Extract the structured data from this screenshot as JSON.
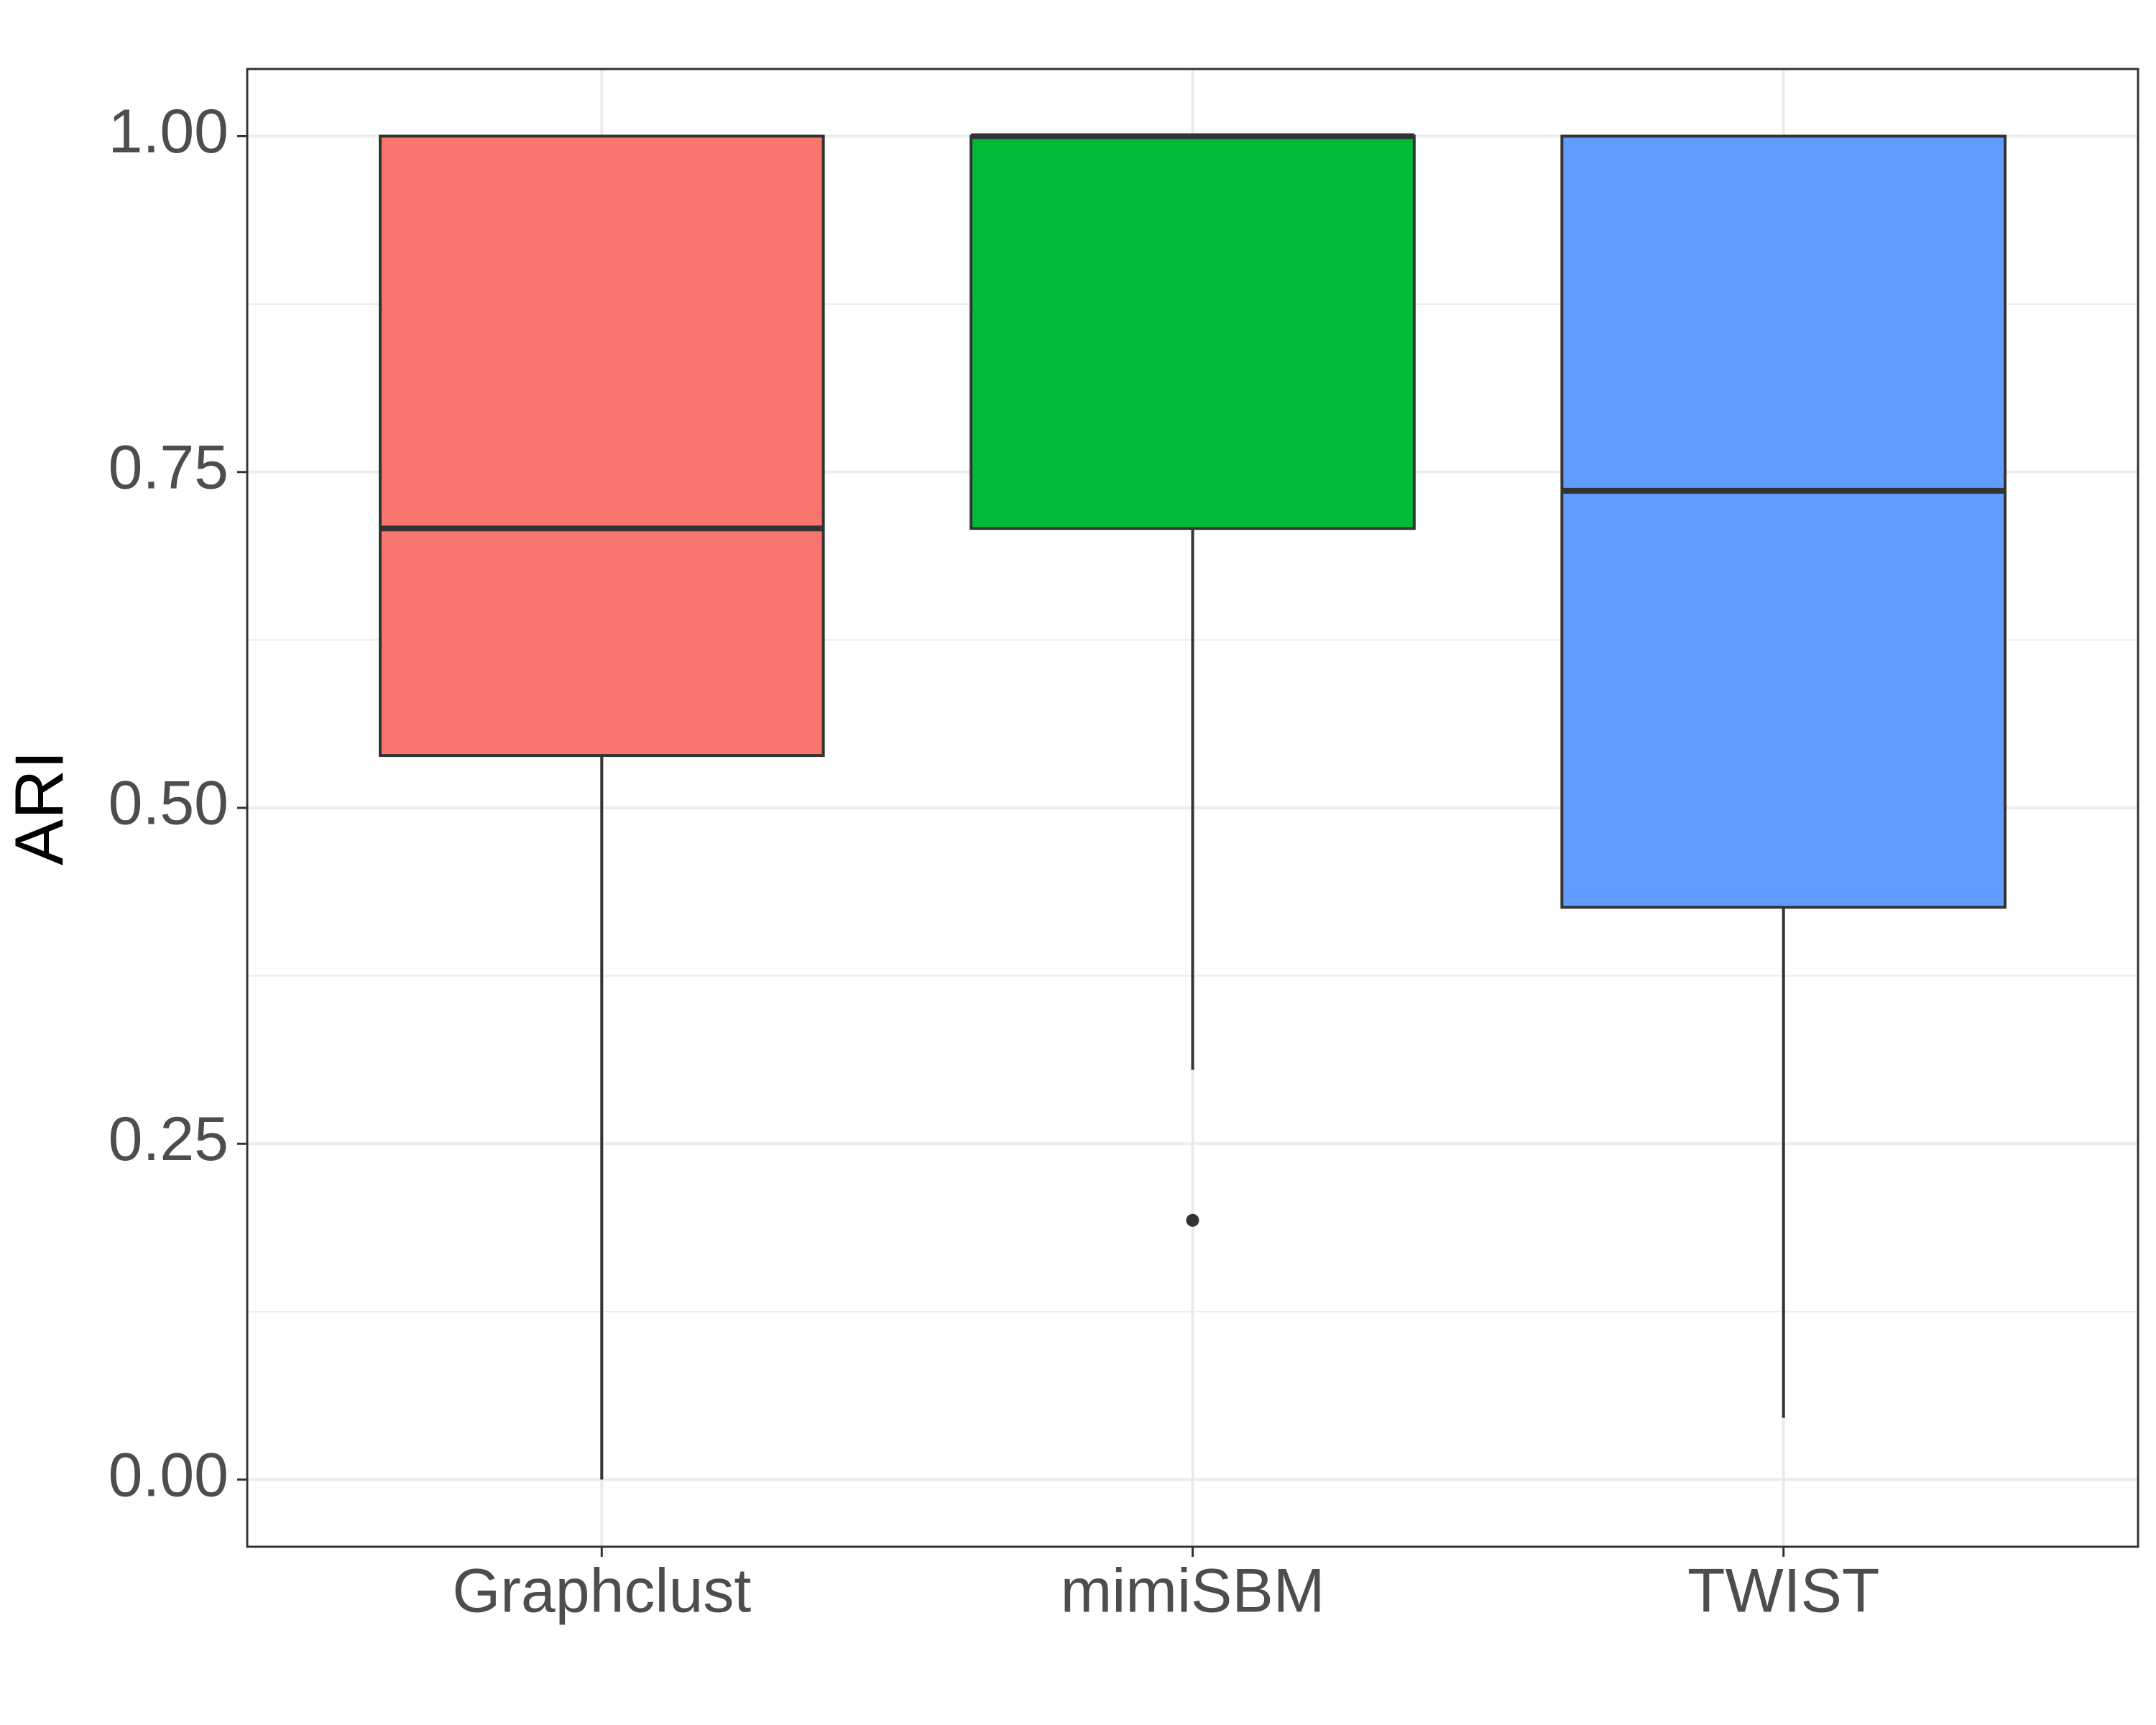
{
  "chart_data": {
    "type": "box",
    "y_label": "ARI",
    "categories": [
      "Graphclust",
      "mimiSBM",
      "TWIST"
    ],
    "colors": [
      "#F8766D",
      "#00BA38",
      "#619CFF"
    ],
    "boxes": [
      {
        "min": 0.0,
        "q1": 0.539,
        "median": 0.708,
        "q3": 1.0,
        "max": 1.0,
        "outliers": []
      },
      {
        "min": 0.305,
        "q1": 0.708,
        "median": 1.0,
        "q3": 1.0,
        "max": 1.0,
        "outliers": [
          0.193
        ]
      },
      {
        "min": 0.046,
        "q1": 0.426,
        "median": 0.736,
        "q3": 1.0,
        "max": 1.0,
        "outliers": []
      }
    ],
    "ylim": [
      -0.05,
      1.05
    ],
    "yticks": [
      {
        "value": 0,
        "label": "0.00"
      },
      {
        "value": 0.25,
        "label": "0.25"
      },
      {
        "value": 0.5,
        "label": "0.50"
      },
      {
        "value": 0.75,
        "label": "0.75"
      },
      {
        "value": 1,
        "label": "1.00"
      }
    ],
    "grid": true
  }
}
